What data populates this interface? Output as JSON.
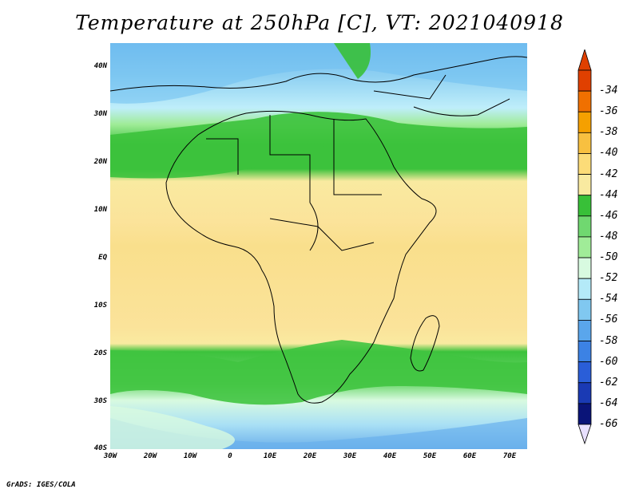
{
  "title": "Temperature at 250hPa [C], VT: 2021040918",
  "credit": "GrADS: IGES/COLA",
  "map": {
    "lat_labels": [
      "40N",
      "30N",
      "20N",
      "10N",
      "EQ",
      "10S",
      "20S",
      "30S",
      "40S"
    ],
    "lon_labels": [
      "30W",
      "20W",
      "10W",
      "0",
      "10E",
      "20E",
      "30E",
      "40E",
      "50E",
      "60E",
      "70E"
    ],
    "lat_range": [
      -40,
      45
    ],
    "lon_range": [
      -30,
      75
    ]
  },
  "legend": {
    "labels": [
      "-34",
      "-36",
      "-38",
      "-40",
      "-42",
      "-44",
      "-46",
      "-48",
      "-50",
      "-52",
      "-54",
      "-56",
      "-58",
      "-60",
      "-62",
      "-64",
      "-66"
    ],
    "colors": [
      "#e04000",
      "#f07000",
      "#f5a000",
      "#f8c040",
      "#fcdc78",
      "#f9eaa0",
      "#38c038",
      "#70d870",
      "#a0ec98",
      "#d8fae0",
      "#b4eaf8",
      "#80c8f0",
      "#5aa6ec",
      "#3c82e4",
      "#2a5ed8",
      "#1a3ab4",
      "#0a1478"
    ]
  },
  "colors": {
    "warm_band": "#f9e39a",
    "green_band": "#3cc23c",
    "light_green": "#a0ec98",
    "pale_cyan": "#d8fae0",
    "blue": "#80c8f0"
  }
}
